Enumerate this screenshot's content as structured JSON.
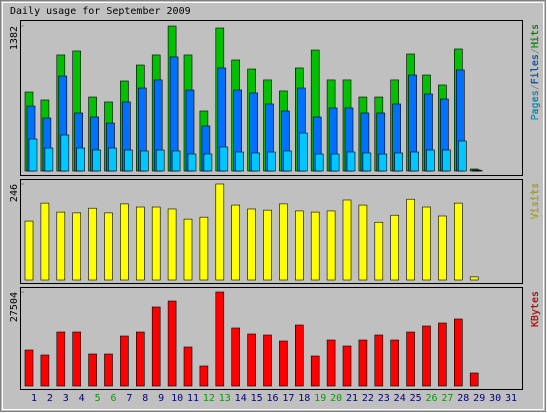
{
  "title": "Daily usage for September 2009",
  "chart_data": [
    {
      "type": "bar",
      "legend_separator": "/",
      "ylim": [
        0,
        1382
      ],
      "yticks": [
        1382
      ],
      "series": [
        {
          "name": "Hits",
          "color": "#00c000",
          "values": [
            753,
            677,
            1106,
            1144,
            705,
            658,
            858,
            1010,
            1106,
            1382,
            1106,
            572,
            1363,
            1058,
            972,
            868,
            763,
            982,
            1153,
            868,
            868,
            705,
            705,
            868,
            1115,
            915,
            820,
            1163,
            19,
            0,
            0
          ]
        },
        {
          "name": "Files",
          "color": "#0070ff",
          "values": [
            619,
            505,
            905,
            553,
            515,
            457,
            658,
            791,
            868,
            1087,
            772,
            429,
            982,
            772,
            744,
            639,
            572,
            791,
            515,
            601,
            601,
            553,
            553,
            639,
            915,
            734,
            686,
            963,
            10,
            0,
            0
          ]
        },
        {
          "name": "Pages",
          "color": "#00c8ff",
          "values": [
            305,
            219,
            343,
            219,
            200,
            219,
            200,
            191,
            200,
            191,
            162,
            162,
            229,
            181,
            172,
            181,
            191,
            362,
            162,
            162,
            181,
            172,
            162,
            172,
            181,
            200,
            200,
            286,
            5,
            0,
            0
          ]
        }
      ]
    },
    {
      "type": "bar",
      "ylim": [
        0,
        246
      ],
      "yticks": [
        246
      ],
      "series": [
        {
          "name": "Visits",
          "color": "#ffff00",
          "values": [
            151,
            197,
            174,
            172,
            184,
            172,
            195,
            187,
            187,
            182,
            156,
            161,
            246,
            192,
            182,
            179,
            195,
            177,
            174,
            177,
            205,
            192,
            148,
            166,
            207,
            187,
            164,
            197,
            8,
            0,
            0
          ]
        }
      ]
    },
    {
      "type": "bar",
      "ylim": [
        0,
        27504
      ],
      "yticks": [
        27504
      ],
      "series": [
        {
          "name": "KBytes",
          "color": "#ff0000",
          "values": [
            10533,
            9070,
            15800,
            15800,
            9363,
            9363,
            14630,
            15800,
            23115,
            24870,
            11411,
            5852,
            27504,
            16970,
            15215,
            14922,
            13166,
            17848,
            8778,
            13459,
            11704,
            13459,
            14922,
            13459,
            15800,
            17555,
            18433,
            19603,
            3804,
            0,
            0
          ]
        }
      ],
      "categories": [
        "1",
        "2",
        "3",
        "4",
        "5",
        "6",
        "7",
        "8",
        "9",
        "10",
        "11",
        "12",
        "13",
        "14",
        "15",
        "16",
        "17",
        "18",
        "19",
        "20",
        "21",
        "22",
        "23",
        "24",
        "25",
        "26",
        "27",
        "28",
        "29",
        "30",
        "31"
      ],
      "category_colors": [
        "#000080",
        "#000080",
        "#000080",
        "#000080",
        "#00a000",
        "#00a000",
        "#000080",
        "#000080",
        "#000080",
        "#000080",
        "#000080",
        "#00a000",
        "#00a000",
        "#000080",
        "#000080",
        "#000080",
        "#000080",
        "#000080",
        "#00a000",
        "#00a000",
        "#000080",
        "#000080",
        "#000080",
        "#000080",
        "#000080",
        "#00a000",
        "#00a000",
        "#000080",
        "#000080",
        "#000080",
        "#000080"
      ]
    }
  ]
}
